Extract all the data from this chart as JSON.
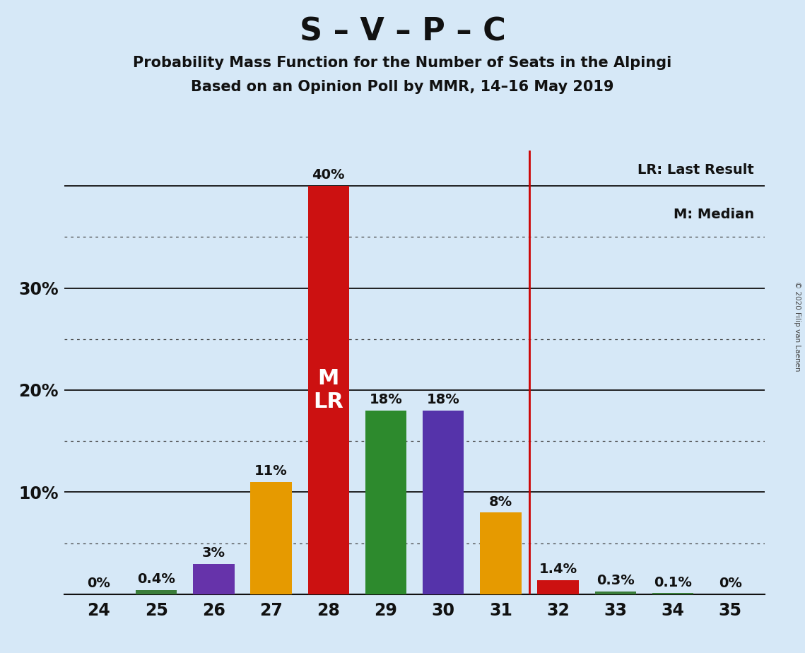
{
  "title_main": "S – V – P – C",
  "title_sub1": "Probability Mass Function for the Number of Seats in the Alpingi",
  "title_sub2": "Based on an Opinion Poll by MMR, 14–16 May 2019",
  "copyright": "© 2020 Filip van Laenen",
  "categories": [
    24,
    25,
    26,
    27,
    28,
    29,
    30,
    31,
    32,
    33,
    34,
    35
  ],
  "values": [
    0.0,
    0.4,
    3.0,
    11.0,
    40.0,
    18.0,
    18.0,
    8.0,
    1.4,
    0.3,
    0.1,
    0.0
  ],
  "labels": [
    "0%",
    "0.4%",
    "3%",
    "11%",
    "40%",
    "18%",
    "18%",
    "8%",
    "1.4%",
    "0.3%",
    "0.1%",
    "0%"
  ],
  "bar_colors": [
    "#3a7d3a",
    "#3a7d3a",
    "#6633aa",
    "#e69a00",
    "#cc1111",
    "#2d8a2d",
    "#5533aa",
    "#e69a00",
    "#cc1111",
    "#3a7d3a",
    "#3a7d3a",
    "#3a7d3a"
  ],
  "median_bar_cat": 28,
  "lr_line_cat": 31.5,
  "vline_color": "#cc0000",
  "background_color": "#d6e8f7",
  "legend_text1": "LR: Last Result",
  "legend_text2": "M: Median",
  "title_main_fontsize": 32,
  "title_sub_fontsize": 15,
  "tick_fontsize": 17,
  "label_fontsize": 14,
  "median_label_color": "#ffffff",
  "dotted_yticks": [
    5,
    15,
    25,
    35
  ],
  "solid_yticks": [
    10,
    20,
    30,
    40
  ],
  "ytick_labels": {
    "10": "10%",
    "20": "20%",
    "30": "30%"
  },
  "bar_width": 0.72,
  "ylim_max": 43.5
}
